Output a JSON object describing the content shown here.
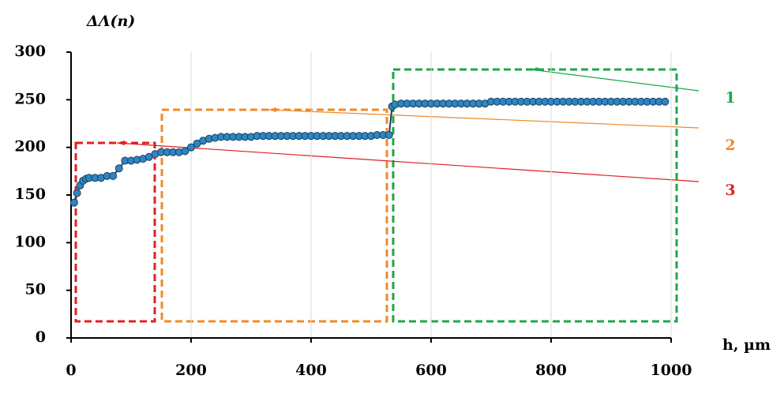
{
  "chart_data": {
    "type": "line",
    "y_label": "ΔΛ(n)",
    "x_label": "h, µm",
    "x": [
      5,
      10,
      15,
      20,
      25,
      30,
      40,
      50,
      60,
      70,
      80,
      90,
      100,
      110,
      120,
      130,
      140,
      150,
      160,
      170,
      180,
      190,
      200,
      210,
      220,
      230,
      240,
      250,
      260,
      270,
      280,
      290,
      300,
      310,
      320,
      330,
      340,
      350,
      360,
      370,
      380,
      390,
      400,
      410,
      420,
      430,
      440,
      450,
      460,
      470,
      480,
      490,
      500,
      510,
      520,
      530,
      535,
      540,
      550,
      560,
      570,
      580,
      590,
      600,
      610,
      620,
      630,
      640,
      650,
      660,
      670,
      680,
      690,
      700,
      710,
      720,
      730,
      740,
      750,
      760,
      770,
      780,
      790,
      800,
      810,
      820,
      830,
      840,
      850,
      860,
      870,
      880,
      890,
      900,
      910,
      920,
      930,
      940,
      950,
      960,
      970,
      980,
      990
    ],
    "values": [
      142,
      152,
      160,
      165,
      167,
      168,
      168,
      168,
      170,
      170,
      178,
      186,
      186,
      187,
      188,
      190,
      193,
      195,
      195,
      195,
      195,
      196,
      200,
      204,
      207,
      209,
      210,
      211,
      211,
      211,
      211,
      211,
      211,
      212,
      212,
      212,
      212,
      212,
      212,
      212,
      212,
      212,
      212,
      212,
      212,
      212,
      212,
      212,
      212,
      212,
      212,
      212,
      212,
      213,
      213,
      213,
      243,
      245,
      246,
      246,
      246,
      246,
      246,
      246,
      246,
      246,
      246,
      246,
      246,
      246,
      246,
      246,
      246,
      248,
      248,
      248,
      248,
      248,
      248,
      248,
      248,
      248,
      248,
      248,
      248,
      248,
      248,
      248,
      248,
      248,
      248,
      248,
      248,
      248,
      248,
      248,
      248,
      248,
      248,
      248,
      248,
      248,
      248
    ],
    "color": "#2e86c1",
    "xlim": [
      0,
      1000
    ],
    "xticks": [
      0,
      200,
      400,
      600,
      800,
      1000
    ],
    "ylim": [
      0,
      300
    ],
    "yticks": [
      0,
      50,
      100,
      150,
      200,
      250,
      300
    ],
    "grid": "x",
    "annotations": [
      {
        "text": "1",
        "color": "#1fa64a"
      },
      {
        "text": "2",
        "color": "#f0892a"
      },
      {
        "text": "3",
        "color": "#e02020"
      }
    ]
  }
}
